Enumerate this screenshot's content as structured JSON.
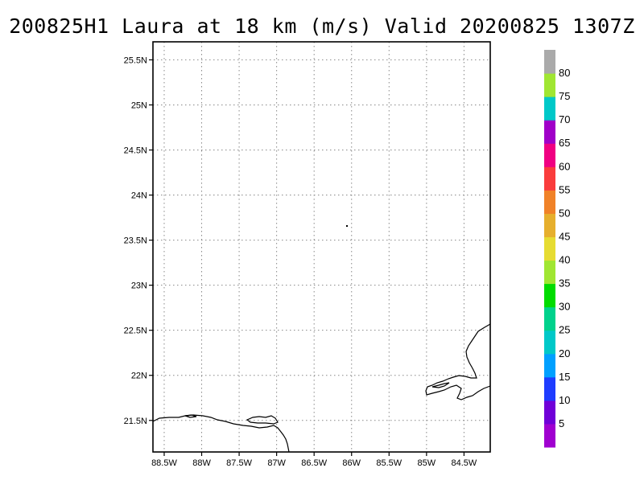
{
  "title": "200825H1 Laura at 18 km (m/s) Valid 20200825 1307Z",
  "map": {
    "lon_labels": [
      "88.5W",
      "88W",
      "87.5W",
      "87W",
      "86.5W",
      "86W",
      "85.5W",
      "85W",
      "84.5W"
    ],
    "lat_labels": [
      "25.5N",
      "25N",
      "24.5N",
      "24N",
      "23.5N",
      "23N",
      "22.5N",
      "22N",
      "21.5N"
    ],
    "lon_range": [
      -88.65,
      -84.15
    ],
    "lat_range": [
      21.15,
      25.7
    ],
    "grid": true,
    "coastline_color": "#000000"
  },
  "colorbar": {
    "labels": [
      "5",
      "10",
      "15",
      "20",
      "25",
      "30",
      "35",
      "40",
      "45",
      "50",
      "55",
      "60",
      "65",
      "70",
      "75",
      "80"
    ],
    "colors": [
      "#a000d0",
      "#7000d8",
      "#1e3cff",
      "#00a0ff",
      "#00c8c8",
      "#00d28c",
      "#00dc00",
      "#a0e632",
      "#e6dc32",
      "#e6af2d",
      "#f08228",
      "#fa3c3c",
      "#f00082",
      "#a000c8",
      "#00c8c8",
      "#a0e632",
      "#aaaaaa"
    ]
  }
}
